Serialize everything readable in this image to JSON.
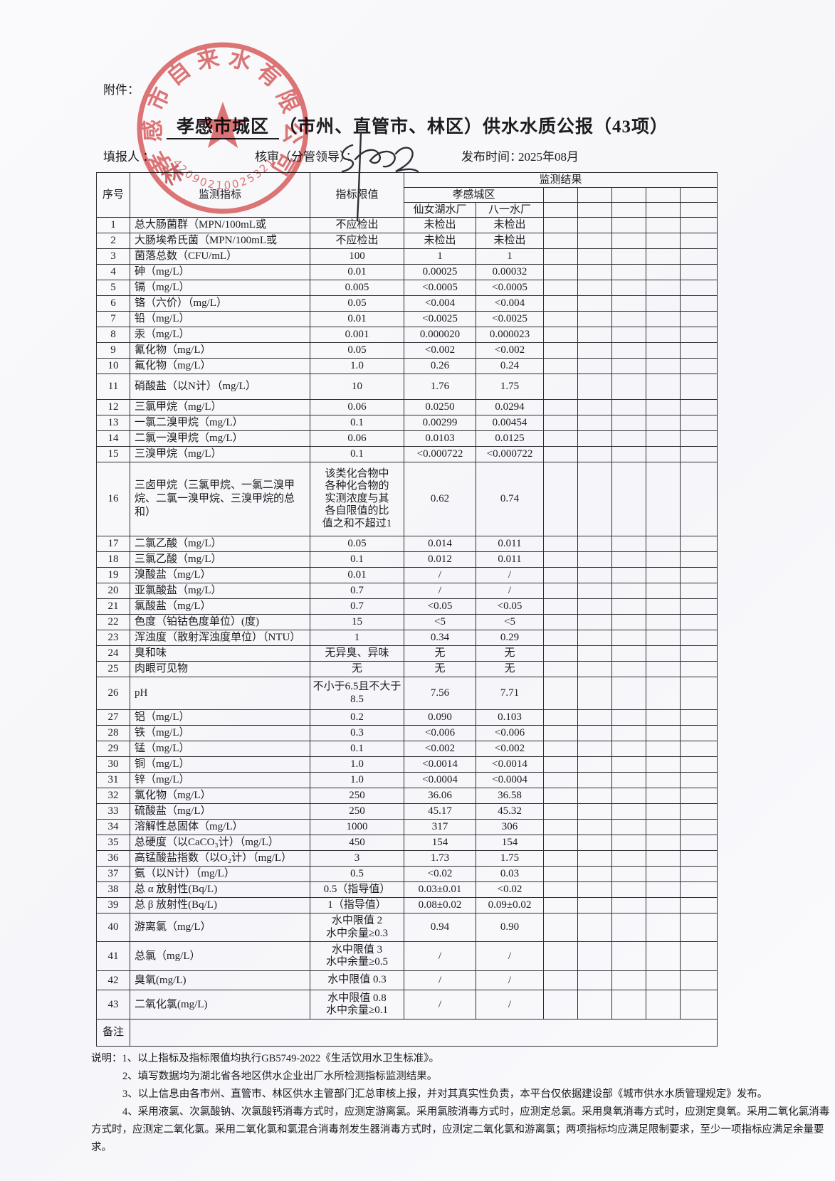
{
  "document": {
    "attachment_label": "附件：",
    "title_underlined": "孝感市城区",
    "title_rest": "（市州、直管市、林区）供水水质公报（43项）",
    "form": {
      "filler_label": "填报人 ：",
      "reviewer_label": "核审（分管领导）：",
      "publish_time_label": "发布时间：",
      "publish_time_value": "2025年08月"
    }
  },
  "stamp": {
    "company_name": "孝感市自来水有限公司",
    "serial_number": "42090210025321",
    "extra_glyph": "林",
    "color": "#dd5f5f"
  },
  "table": {
    "headers": {
      "seq": "序号",
      "indicator": "监测指标",
      "limit": "指标限值",
      "result_group": "监测结果",
      "city_group": "孝感城区",
      "plant1": "仙女湖水厂",
      "plant2": "八一水厂"
    },
    "empty_result_columns": 5,
    "remark_label": "备注",
    "rows": [
      {
        "no": "1",
        "indicator": "总大肠菌群（MPN/100mL或",
        "limit": "不应检出",
        "plant1": "未检出",
        "plant2": "未检出"
      },
      {
        "no": "2",
        "indicator": "大肠埃希氏菌（MPN/100mL或",
        "limit": "不应检出",
        "plant1": "未检出",
        "plant2": "未检出"
      },
      {
        "no": "3",
        "indicator": "菌落总数（CFU/mL）",
        "limit": "100",
        "plant1": "1",
        "plant2": "1"
      },
      {
        "no": "4",
        "indicator": "砷（mg/L）",
        "limit": "0.01",
        "plant1": "0.00025",
        "plant2": "0.00032"
      },
      {
        "no": "5",
        "indicator": "镉（mg/L）",
        "limit": "0.005",
        "plant1": "<0.0005",
        "plant2": "<0.0005"
      },
      {
        "no": "6",
        "indicator": "铬（六价）（mg/L）",
        "limit": "0.05",
        "plant1": "<0.004",
        "plant2": "<0.004"
      },
      {
        "no": "7",
        "indicator": "铅（mg/L）",
        "limit": "0.01",
        "plant1": "<0.0025",
        "plant2": "<0.0025"
      },
      {
        "no": "8",
        "indicator": "汞（mg/L）",
        "limit": "0.001",
        "plant1": "0.000020",
        "plant2": "0.000023"
      },
      {
        "no": "9",
        "indicator": "氰化物（mg/L）",
        "limit": "0.05",
        "plant1": "<0.002",
        "plant2": "<0.002"
      },
      {
        "no": "10",
        "indicator": "氟化物（mg/L）",
        "limit": "1.0",
        "plant1": "0.26",
        "plant2": "0.24"
      },
      {
        "no": "11",
        "indicator": "硝酸盐（以N计）（mg/L）",
        "limit": "10",
        "plant1": "1.76",
        "plant2": "1.75"
      },
      {
        "no": "12",
        "indicator": "三氯甲烷（mg/L）",
        "limit": "0.06",
        "plant1": "0.0250",
        "plant2": "0.0294"
      },
      {
        "no": "13",
        "indicator": "一氯二溴甲烷（mg/L）",
        "limit": "0.1",
        "plant1": "0.00299",
        "plant2": "0.00454"
      },
      {
        "no": "14",
        "indicator": "二氯一溴甲烷（mg/L）",
        "limit": "0.06",
        "plant1": "0.0103",
        "plant2": "0.0125"
      },
      {
        "no": "15",
        "indicator": "三溴甲烷（mg/L）",
        "limit": "0.1",
        "plant1": "<0.000722",
        "plant2": "<0.000722"
      },
      {
        "no": "16",
        "indicator": "三卤甲烷（三氯甲烷、一氯二溴甲烷、二氯一溴甲烷、三溴甲烷的总和）",
        "limit": "该类化合物中\n各种化合物的\n实测浓度与其\n各自限值的比\n值之和不超过1",
        "plant1": "0.62",
        "plant2": "0.74"
      },
      {
        "no": "17",
        "indicator": "二氯乙酸（mg/L）",
        "limit": "0.05",
        "plant1": "0.014",
        "plant2": "0.011"
      },
      {
        "no": "18",
        "indicator": "三氯乙酸（mg/L）",
        "limit": "0.1",
        "plant1": "0.012",
        "plant2": "0.011"
      },
      {
        "no": "19",
        "indicator": "溴酸盐（mg/L）",
        "limit": "0.01",
        "plant1": "/",
        "plant2": "/"
      },
      {
        "no": "20",
        "indicator": "亚氯酸盐（mg/L）",
        "limit": "0.7",
        "plant1": "/",
        "plant2": "/"
      },
      {
        "no": "21",
        "indicator": "氯酸盐（mg/L）",
        "limit": "0.7",
        "plant1": "<0.05",
        "plant2": "<0.05"
      },
      {
        "no": "22",
        "indicator": "色度（铂钴色度单位）(度)",
        "limit": "15",
        "plant1": "<5",
        "plant2": "<5"
      },
      {
        "no": "23",
        "indicator": "浑浊度（散射浑浊度单位）（NTU）",
        "limit": "1",
        "plant1": "0.34",
        "plant2": "0.29"
      },
      {
        "no": "24",
        "indicator": "臭和味",
        "limit": "无异臭、异味",
        "plant1": "无",
        "plant2": "无"
      },
      {
        "no": "25",
        "indicator": "肉眼可见物",
        "limit": "无",
        "plant1": "无",
        "plant2": "无"
      },
      {
        "no": "26",
        "indicator": "pH",
        "limit": "不小于6.5且不大于8.5",
        "plant1": "7.56",
        "plant2": "7.71"
      },
      {
        "no": "27",
        "indicator": "铝（mg/L）",
        "limit": "0.2",
        "plant1": "0.090",
        "plant2": "0.103"
      },
      {
        "no": "28",
        "indicator": "铁（mg/L）",
        "limit": "0.3",
        "plant1": "<0.006",
        "plant2": "<0.006"
      },
      {
        "no": "29",
        "indicator": "锰（mg/L）",
        "limit": "0.1",
        "plant1": "<0.002",
        "plant2": "<0.002"
      },
      {
        "no": "30",
        "indicator": "铜（mg/L）",
        "limit": "1.0",
        "plant1": "<0.0014",
        "plant2": "<0.0014"
      },
      {
        "no": "31",
        "indicator": "锌（mg/L）",
        "limit": "1.0",
        "plant1": "<0.0004",
        "plant2": "<0.0004"
      },
      {
        "no": "32",
        "indicator": "氯化物（mg/L）",
        "limit": "250",
        "plant1": "36.06",
        "plant2": "36.58"
      },
      {
        "no": "33",
        "indicator": "硫酸盐（mg/L）",
        "limit": "250",
        "plant1": "45.17",
        "plant2": "45.32"
      },
      {
        "no": "34",
        "indicator": "溶解性总固体（mg/L）",
        "limit": "1000",
        "plant1": "317",
        "plant2": "306"
      },
      {
        "no": "35",
        "indicator": "总硬度（以CaCO₃计）（mg/L）",
        "limit": "450",
        "plant1": "154",
        "plant2": "154"
      },
      {
        "no": "36",
        "indicator": "高锰酸盐指数（以O₂计）（mg/L）",
        "limit": "3",
        "plant1": "1.73",
        "plant2": "1.75"
      },
      {
        "no": "37",
        "indicator": "氨（以N计）（mg/L）",
        "limit": "0.5",
        "plant1": "<0.02",
        "plant2": "0.03"
      },
      {
        "no": "38",
        "indicator": "总 α 放射性(Bq/L)",
        "limit": "0.5（指导值）",
        "plant1": "0.03±0.01",
        "plant2": "<0.02"
      },
      {
        "no": "39",
        "indicator": "总 β 放射性(Bq/L)",
        "limit": "1（指导值）",
        "plant1": "0.08±0.02",
        "plant2": "0.09±0.02"
      },
      {
        "no": "40",
        "indicator": "游离氯（mg/L）",
        "limit": "水中限值 2\n水中余量≥0.3",
        "plant1": "0.94",
        "plant2": "0.90"
      },
      {
        "no": "41",
        "indicator": "总氯（mg/L）",
        "limit": "水中限值 3\n水中余量≥0.5",
        "plant1": "/",
        "plant2": "/"
      },
      {
        "no": "42",
        "indicator": "臭氧(mg/L)",
        "limit": "水中限值 0.3",
        "plant1": "/",
        "plant2": "/"
      },
      {
        "no": "43",
        "indicator": "二氧化氯(mg/L)",
        "limit": "水中限值 0.8\n水中余量≥0.1",
        "plant1": "/",
        "plant2": "/"
      }
    ]
  },
  "notes": {
    "label": "说明：",
    "items": [
      "1、以上指标及指标限值均执行GB5749-2022《生活饮用水卫生标准》。",
      "2、填写数据均为湖北省各地区供水企业出厂水所检测指标监测结果。",
      "3、以上信息由各市州、直管市、林区供水主管部门汇总审核上报，并对其真实性负责，本平台仅依据建设部《城市供水水质管理规定》发布。",
      "4、采用液氯、次氯酸钠、次氯酸钙消毒方式时，应测定游离氯。采用氯胺消毒方式时，应测定总氯。采用臭氧消毒方式时，应测定臭氧。采用二氧化氯消毒方式时，应测定二氧化氯。采用二氧化氯和氯混合消毒剂发生器消毒方式时，应测定二氧化氯和游离氯；两项指标均应满足限制要求，至少一项指标应满足余量要求。"
    ]
  }
}
